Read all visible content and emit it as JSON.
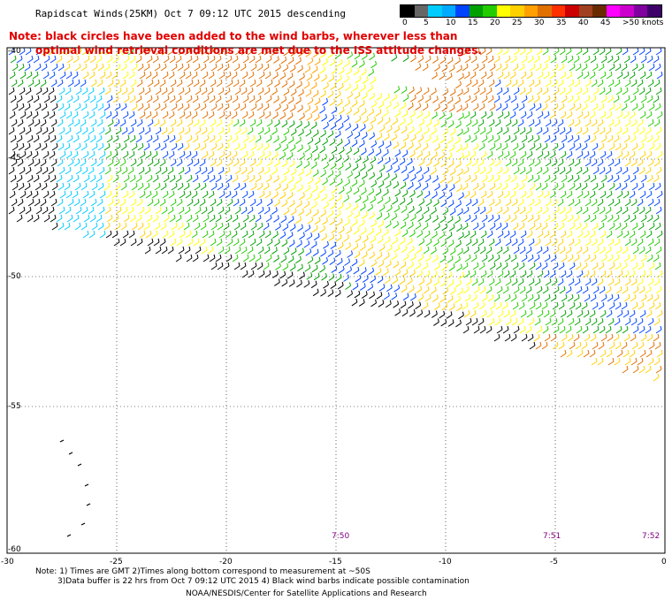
{
  "header": {
    "title": "Rapidscat Winds(25KM) Oct  7 09:12 UTC 2015 descending",
    "note_line1": "Note: black circles have been added to the wind barbs, wherever less than",
    "note_line2": "optimal wind retrieval conditions are met due to the ISS attitude changes."
  },
  "legend": {
    "colors": [
      "#000000",
      "#666666",
      "#00ccff",
      "#00aaff",
      "#0044ff",
      "#00a000",
      "#22cc00",
      "#ffff00",
      "#ffd000",
      "#ffa000",
      "#e07000",
      "#ff3000",
      "#cc0000",
      "#a04020",
      "#6a2a00",
      "#ff00ff",
      "#cc00cc",
      "#8000a0",
      "#40006a"
    ],
    "labels": [
      "0",
      "5",
      "10",
      "15",
      "20",
      "25",
      "30",
      "35",
      "40",
      "45",
      ">50 knots"
    ]
  },
  "axes": {
    "lon_labels": [
      "-30",
      "-25",
      "-20",
      "-15",
      "-10",
      "-5",
      "0"
    ],
    "lat_labels": [
      "-40",
      "-45",
      "-50",
      "-55",
      "-60"
    ]
  },
  "times": [
    "7:50",
    "7:51",
    "7:52"
  ],
  "footer": {
    "line1": "Note: 1) Times are GMT 2)Times along bottom correspond to measurement at ~50S",
    "line2": "3)Data buffer is 22 hrs from Oct  7 09:12 UTC 2015 4) Black wind barbs indicate possible contamination",
    "credit": "NOAA/NESDIS/Center for Satellite Applications and Research"
  }
}
